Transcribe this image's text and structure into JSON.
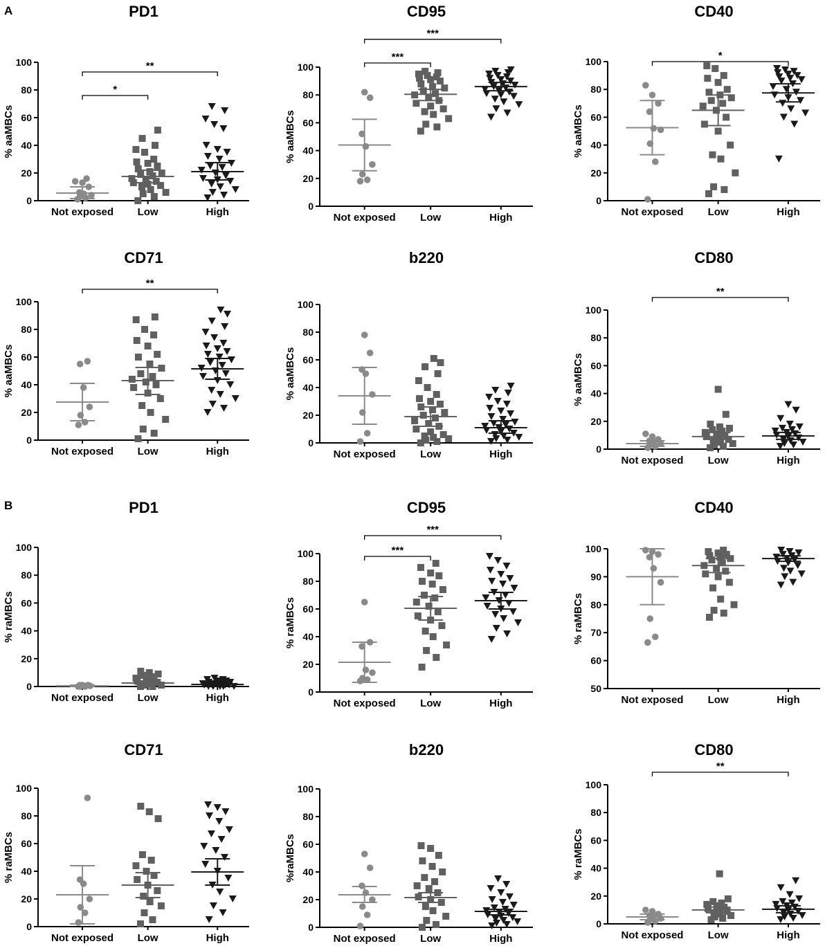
{
  "figure": {
    "section_a_label": "A",
    "section_b_label": "B"
  },
  "colors": {
    "not_exposed": "#8a8a8a",
    "low": "#606060",
    "high": "#1a1a1a",
    "axis": "#000000"
  },
  "chart_data": [
    {
      "id": "a-pd1",
      "type": "scatter",
      "title": "PD1",
      "ylabel": "% aaMBCs",
      "ylim": [
        0,
        100
      ],
      "yticks": [
        0,
        20,
        40,
        60,
        80,
        100
      ],
      "categories": [
        "Not exposed",
        "Low",
        "High"
      ],
      "means": [
        5.5,
        17.5,
        21
      ],
      "error": [
        [
          1.5,
          10
        ],
        [
          13,
          22
        ],
        [
          15,
          27.5
        ]
      ],
      "points": [
        [
          1,
          2,
          3,
          4,
          5,
          6,
          10,
          13,
          14,
          16
        ],
        [
          0,
          3,
          5,
          6,
          8,
          10,
          11,
          12,
          13,
          14,
          15,
          16,
          18,
          19,
          20,
          21,
          23,
          25,
          27,
          28,
          30,
          35,
          37,
          40,
          45,
          51
        ],
        [
          2,
          4,
          6,
          8,
          10,
          12,
          14,
          15,
          16,
          18,
          20,
          22,
          24,
          25,
          27,
          30,
          32,
          35,
          37,
          40,
          52,
          55,
          59,
          65,
          68
        ]
      ],
      "annotations": [
        {
          "from": 0,
          "to": 1,
          "label": "*",
          "y": 76
        },
        {
          "from": 0,
          "to": 2,
          "label": "**",
          "y": 93
        }
      ]
    },
    {
      "id": "a-cd95",
      "type": "scatter",
      "title": "CD95",
      "ylabel": "% aaMBCs",
      "ylim": [
        0,
        100
      ],
      "yticks": [
        0,
        20,
        40,
        60,
        80,
        100
      ],
      "categories": [
        "Not exposed",
        "Low",
        "High"
      ],
      "means": [
        44,
        80.5,
        86
      ],
      "error": [
        [
          25.5,
          62.5
        ],
        [
          76,
          84
        ],
        [
          83,
          89
        ]
      ],
      "points": [
        [
          18,
          19,
          23,
          30,
          43,
          52,
          78,
          82
        ],
        [
          54,
          57,
          59,
          63,
          66,
          68,
          70,
          72,
          74,
          76,
          78,
          80,
          81,
          83,
          85,
          86,
          88,
          90,
          91,
          92,
          93,
          94,
          95,
          96,
          97
        ],
        [
          64,
          67,
          70,
          73,
          75,
          77,
          79,
          80,
          81,
          82,
          83,
          84,
          85,
          86,
          87,
          88,
          89,
          90,
          91,
          92,
          93,
          94,
          95,
          96,
          97,
          98
        ]
      ],
      "annotations": [
        {
          "from": 0,
          "to": 1,
          "label": "***",
          "y": 103
        },
        {
          "from": 0,
          "to": 2,
          "label": "***",
          "y": 120
        }
      ]
    },
    {
      "id": "a-cd40",
      "type": "scatter",
      "title": "CD40",
      "ylabel": "% aaMBCs",
      "ylim": [
        0,
        100
      ],
      "yticks": [
        0,
        20,
        40,
        60,
        80,
        100
      ],
      "categories": [
        "Not exposed",
        "Low",
        "High"
      ],
      "means": [
        52.5,
        65,
        77.5
      ],
      "error": [
        [
          33,
          72
        ],
        [
          54,
          76
        ],
        [
          71,
          84
        ]
      ],
      "points": [
        [
          1,
          28,
          41,
          51,
          52,
          64,
          70,
          76,
          83
        ],
        [
          5,
          8,
          10,
          20,
          30,
          33,
          40,
          50,
          55,
          60,
          65,
          68,
          70,
          72,
          74,
          76,
          78,
          80,
          85,
          88,
          90,
          95,
          97
        ],
        [
          30,
          55,
          60,
          63,
          66,
          70,
          72,
          74,
          76,
          78,
          80,
          82,
          84,
          86,
          87,
          88,
          89,
          90,
          91,
          92,
          93,
          94,
          95
        ]
      ],
      "annotations": [
        {
          "from": 0,
          "to": 2,
          "label": "*",
          "y": 100
        }
      ]
    },
    {
      "id": "a-cd71",
      "type": "scatter",
      "title": "CD71",
      "ylabel": "% aaMBCs",
      "ylim": [
        0,
        100
      ],
      "yticks": [
        0,
        20,
        40,
        60,
        80,
        100
      ],
      "categories": [
        "Not exposed",
        "Low",
        "High"
      ],
      "means": [
        27.5,
        43,
        51.5
      ],
      "error": [
        [
          14,
          41
        ],
        [
          33,
          52.5
        ],
        [
          44,
          59
        ]
      ],
      "points": [
        [
          11,
          13,
          18,
          24,
          38,
          55,
          57
        ],
        [
          1,
          5,
          8,
          15,
          20,
          25,
          30,
          34,
          38,
          40,
          42,
          44,
          46,
          48,
          52,
          55,
          60,
          62,
          68,
          72,
          76,
          80,
          87,
          89
        ],
        [
          20,
          23,
          26,
          30,
          33,
          36,
          40,
          43,
          46,
          48,
          50,
          52,
          54,
          56,
          58,
          60,
          62,
          64,
          66,
          68,
          70,
          74,
          78,
          82,
          86,
          91,
          94
        ]
      ],
      "annotations": [
        {
          "from": 0,
          "to": 2,
          "label": "**",
          "y": 109
        }
      ]
    },
    {
      "id": "a-b220",
      "type": "scatter",
      "title": "b220",
      "ylabel": "% aaMBCs",
      "ylim": [
        0,
        100
      ],
      "yticks": [
        0,
        20,
        40,
        60,
        80,
        100
      ],
      "categories": [
        "Not exposed",
        "Low",
        "High"
      ],
      "means": [
        34,
        19,
        11
      ],
      "error": [
        [
          13.5,
          54.5
        ],
        [
          12,
          26
        ],
        [
          7,
          16
        ]
      ],
      "points": [
        [
          1,
          7,
          22,
          35,
          50,
          53,
          65,
          78
        ],
        [
          0,
          1,
          2,
          3,
          4,
          5,
          6,
          8,
          10,
          12,
          14,
          16,
          18,
          20,
          22,
          24,
          26,
          28,
          30,
          32,
          35,
          40,
          45,
          50,
          55,
          58,
          61
        ],
        [
          1,
          2,
          3,
          4,
          5,
          6,
          7,
          8,
          9,
          10,
          11,
          12,
          13,
          14,
          15,
          17,
          19,
          21,
          23,
          25,
          28,
          30,
          33,
          36,
          38,
          41
        ]
      ],
      "annotations": []
    },
    {
      "id": "a-cd80",
      "type": "scatter",
      "title": "CD80",
      "ylabel": "% aaMBCs",
      "ylim": [
        0,
        100
      ],
      "yticks": [
        0,
        20,
        40,
        60,
        80,
        100
      ],
      "categories": [
        "Not exposed",
        "Low",
        "High"
      ],
      "means": [
        4,
        9,
        9.5
      ],
      "error": [
        [
          2,
          6
        ],
        [
          7,
          12
        ],
        [
          7,
          12
        ]
      ],
      "points": [
        [
          1,
          2,
          3,
          4,
          5,
          6,
          7,
          9,
          11
        ],
        [
          1,
          2,
          3,
          4,
          5,
          6,
          7,
          8,
          9,
          10,
          11,
          12,
          13,
          14,
          15,
          16,
          18,
          25,
          43
        ],
        [
          2,
          3,
          4,
          5,
          6,
          7,
          8,
          9,
          10,
          11,
          12,
          13,
          14,
          15,
          16,
          18,
          22,
          28,
          32
        ]
      ],
      "annotations": [
        {
          "from": 0,
          "to": 2,
          "label": "**",
          "y": 109
        }
      ]
    },
    {
      "id": "b-pd1",
      "type": "scatter",
      "title": "PD1",
      "ylabel": "% raMBCs",
      "ylim": [
        0,
        100
      ],
      "yticks": [
        0,
        20,
        40,
        60,
        80,
        100
      ],
      "categories": [
        "Not exposed",
        "Low",
        "High"
      ],
      "means": [
        0.5,
        2.5,
        1.5
      ],
      "error": [
        [
          0,
          1
        ],
        [
          1.5,
          3.5
        ],
        [
          1,
          2
        ]
      ],
      "points": [
        [
          0,
          0,
          0,
          0.5,
          0.5,
          1,
          1,
          1
        ],
        [
          0,
          0,
          1,
          1,
          2,
          2,
          3,
          3,
          4,
          4,
          5,
          6,
          7,
          8,
          9,
          10,
          11
        ],
        [
          0,
          0,
          0,
          0,
          0,
          1,
          1,
          1,
          1,
          1,
          2,
          2,
          2,
          2,
          3,
          3,
          3,
          4,
          4,
          5,
          5,
          6
        ]
      ],
      "annotations": []
    },
    {
      "id": "b-cd95",
      "type": "scatter",
      "title": "CD95",
      "ylabel": "% raMBCs",
      "ylim": [
        0,
        100
      ],
      "yticks": [
        0,
        20,
        40,
        60,
        80,
        100
      ],
      "categories": [
        "Not exposed",
        "Low",
        "High"
      ],
      "means": [
        21.5,
        60.5,
        66
      ],
      "error": [
        [
          7,
          36
        ],
        [
          52,
          69
        ],
        [
          60,
          72
        ]
      ],
      "points": [
        [
          8,
          9,
          10,
          14,
          16,
          33,
          36,
          65
        ],
        [
          18,
          25,
          30,
          34,
          40,
          44,
          48,
          52,
          55,
          58,
          62,
          65,
          68,
          70,
          74,
          78,
          80,
          84,
          86,
          90,
          93
        ],
        [
          38,
          42,
          46,
          50,
          53,
          56,
          58,
          60,
          62,
          64,
          66,
          68,
          70,
          72,
          75,
          78,
          80,
          82,
          85,
          88,
          91,
          95,
          98
        ]
      ],
      "annotations": [
        {
          "from": 0,
          "to": 1,
          "label": "***",
          "y": 98
        },
        {
          "from": 0,
          "to": 2,
          "label": "***",
          "y": 113
        }
      ]
    },
    {
      "id": "b-cd40",
      "type": "scatter",
      "title": "CD40",
      "ylabel": "% raMBCs",
      "ylim": [
        50,
        100
      ],
      "yticks": [
        50,
        60,
        70,
        80,
        90,
        100
      ],
      "categories": [
        "Not exposed",
        "Low",
        "High"
      ],
      "means": [
        90,
        94,
        96.5
      ],
      "error": [
        [
          80,
          100
        ],
        [
          91.5,
          96.5
        ],
        [
          95.5,
          97.5
        ]
      ],
      "points": [
        [
          66.5,
          68.5,
          75,
          88,
          93,
          97,
          98,
          99,
          99.5
        ],
        [
          75.5,
          77,
          78,
          80,
          82,
          86,
          88,
          90,
          91,
          92,
          93,
          94,
          95,
          96,
          96.5,
          97,
          97.5,
          98,
          98.5,
          99,
          99.5
        ],
        [
          87,
          88,
          90,
          91,
          92,
          93,
          94,
          95,
          95.5,
          96,
          96.5,
          97,
          97.5,
          98,
          98.5,
          99,
          99.5
        ]
      ],
      "annotations": []
    },
    {
      "id": "b-cd71",
      "type": "scatter",
      "title": "CD71",
      "ylabel": "% raMBCs",
      "ylim": [
        0,
        100
      ],
      "yticks": [
        0,
        20,
        40,
        60,
        80,
        100
      ],
      "categories": [
        "Not exposed",
        "Low",
        "High"
      ],
      "means": [
        23,
        30,
        39.5
      ],
      "error": [
        [
          2,
          44
        ],
        [
          21,
          39
        ],
        [
          30,
          49
        ]
      ],
      "points": [
        [
          3,
          10,
          14,
          20,
          31,
          34,
          93
        ],
        [
          2,
          5,
          10,
          15,
          18,
          22,
          26,
          30,
          34,
          37,
          40,
          44,
          48,
          52,
          78,
          83,
          87
        ],
        [
          5,
          10,
          15,
          20,
          25,
          30,
          35,
          40,
          45,
          50,
          55,
          58,
          63,
          67,
          70,
          76,
          80,
          83,
          86,
          88
        ]
      ],
      "annotations": []
    },
    {
      "id": "b-b220",
      "type": "scatter",
      "title": "b220",
      "ylabel": "%raMBCs",
      "ylim": [
        0,
        100
      ],
      "yticks": [
        0,
        20,
        40,
        60,
        80,
        100
      ],
      "categories": [
        "Not exposed",
        "Low",
        "High"
      ],
      "means": [
        23.5,
        21.5,
        11.5
      ],
      "error": [
        [
          18,
          29.5
        ],
        [
          18,
          25
        ],
        [
          9,
          13
        ]
      ],
      "points": [
        [
          1,
          9,
          15,
          20,
          25,
          30,
          43,
          53
        ],
        [
          0,
          2,
          5,
          8,
          12,
          15,
          18,
          20,
          22,
          25,
          28,
          30,
          33,
          36,
          40,
          44,
          48,
          52,
          57,
          59
        ],
        [
          1,
          2,
          3,
          4,
          5,
          6,
          7,
          8,
          9,
          10,
          11,
          12,
          13,
          14,
          16,
          18,
          20,
          22,
          25,
          28,
          31,
          35
        ]
      ],
      "annotations": []
    },
    {
      "id": "b-cd80",
      "type": "scatter",
      "title": "CD80",
      "ylabel": "% raMBCs",
      "ylim": [
        0,
        100
      ],
      "yticks": [
        0,
        20,
        40,
        60,
        80,
        100
      ],
      "categories": [
        "Not exposed",
        "Low",
        "High"
      ],
      "means": [
        5,
        10,
        10.5
      ],
      "error": [
        [
          3,
          7
        ],
        [
          8,
          12
        ],
        [
          8,
          13
        ]
      ],
      "points": [
        [
          1,
          2,
          3,
          4,
          5,
          6,
          7,
          9,
          10
        ],
        [
          3,
          4,
          5,
          6,
          7,
          8,
          9,
          10,
          11,
          12,
          13,
          14,
          15,
          16,
          18,
          36
        ],
        [
          3,
          4,
          5,
          6,
          7,
          8,
          9,
          10,
          11,
          12,
          13,
          14,
          15,
          16,
          18,
          21,
          26,
          31
        ]
      ],
      "annotations": [
        {
          "from": 0,
          "to": 2,
          "label": "**",
          "y": 109
        }
      ]
    }
  ]
}
